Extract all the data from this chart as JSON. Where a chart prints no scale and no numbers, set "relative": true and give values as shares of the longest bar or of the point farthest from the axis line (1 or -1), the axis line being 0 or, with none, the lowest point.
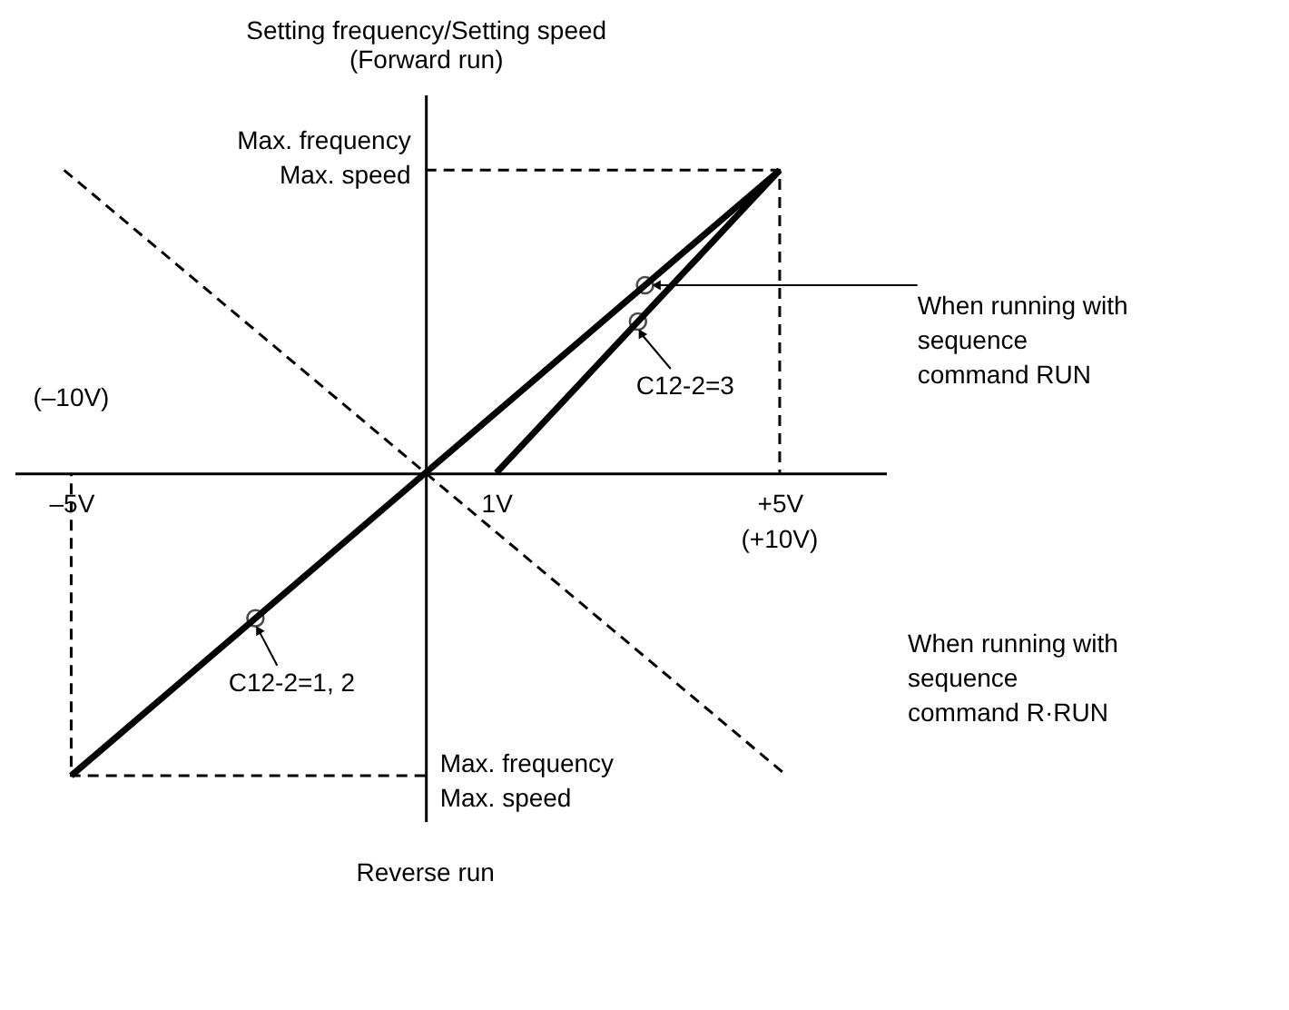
{
  "chart_data": {
    "type": "line",
    "relative": true,
    "ylabel": "Setting frequency/Setting speed\n(Forward run)",
    "xlim": [
      -5.8,
      6.5
    ],
    "xticks": [
      {
        "value": -5,
        "label": "–5V"
      },
      {
        "value": 1,
        "label": "1V"
      },
      {
        "value": 5,
        "label": "+5V"
      }
    ],
    "grid": false,
    "series": [
      {
        "color": "#000000",
        "line_style": "solid",
        "marker": "none",
        "x": [
          -5,
          0,
          5
        ],
        "values": [
          -1,
          0,
          1
        ]
      },
      {
        "color": "#000000",
        "line_style": "solid",
        "marker": "none",
        "x": [
          1,
          5
        ],
        "values": [
          0,
          1
        ]
      },
      {
        "color": "#000000",
        "line_style": "dashed",
        "marker": "none",
        "x": [
          0,
          5,
          5
        ],
        "values": [
          1,
          1,
          0
        ]
      },
      {
        "color": "#000000",
        "line_style": "dashed",
        "marker": "none",
        "x": [
          0,
          -5,
          -5
        ],
        "values": [
          -1,
          -1,
          0
        ]
      },
      {
        "color": "#000000",
        "line_style": "dashed",
        "marker": "none",
        "x": [
          -5.1,
          5.1
        ],
        "values": [
          1,
          -1
        ]
      },
      {
        "type": "scatter",
        "color": "#000000",
        "marker": "circle",
        "x": [
          3.1,
          3.0,
          -2.4
        ],
        "values": [
          0.62,
          0.5,
          -0.48
        ]
      }
    ],
    "annotations": [
      {
        "text": "Max. frequency\nMax. speed",
        "x": 0,
        "y": 1
      },
      {
        "text": "Max. frequency\nMax. speed",
        "x": 0,
        "y": -1
      },
      {
        "text": "When running with\nsequence\ncommand RUN",
        "x": 3.1,
        "y": 0.62
      },
      {
        "text": "C12-2=3",
        "x": 3.0,
        "y": 0.5
      },
      {
        "text": "C12-2=1, 2",
        "x": -2.4,
        "y": -0.48
      },
      "(–10V)",
      "(+10V)",
      "When running with\nsequence\ncommand R·RUN",
      "Reverse run"
    ]
  }
}
